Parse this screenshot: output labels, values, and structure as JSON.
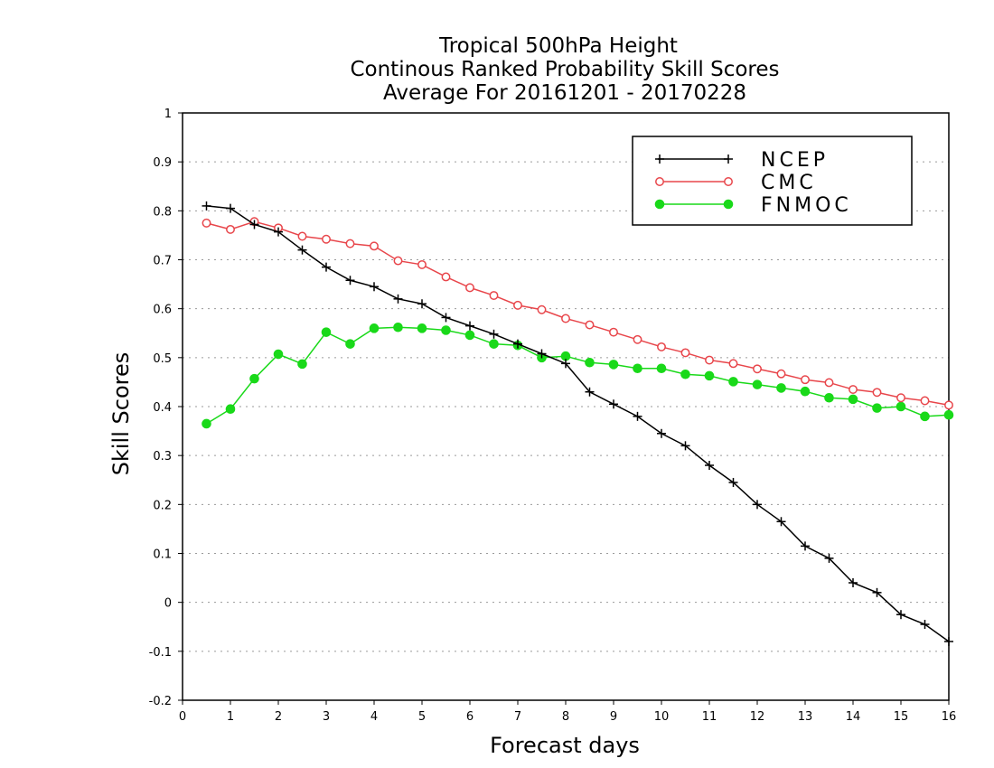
{
  "chart_data": {
    "type": "line",
    "title_lines": [
      "Tropical 500hPa Height",
      "Continous Ranked Probability Skill Scores",
      "Average For 20161201 - 20170228"
    ],
    "xlabel": "Forecast days",
    "ylabel": "Skill Scores",
    "xlim": [
      0,
      16
    ],
    "ylim": [
      -0.2,
      1
    ],
    "x_ticks": [
      0,
      1,
      2,
      3,
      4,
      5,
      6,
      7,
      8,
      9,
      10,
      11,
      12,
      13,
      14,
      15,
      16
    ],
    "x_tick_labels": [
      "0",
      "1",
      "2",
      "3",
      "4",
      "5",
      "6",
      "7",
      "8",
      "9",
      "10",
      "11",
      "12",
      "13",
      "14",
      "15",
      "16"
    ],
    "y_ticks": [
      -0.2,
      -0.1,
      0,
      0.1,
      0.2,
      0.3,
      0.4,
      0.5,
      0.6,
      0.7,
      0.8,
      0.9,
      1
    ],
    "y_tick_labels": [
      "-0.2",
      "-0.1",
      "0",
      "0.1",
      "0.2",
      "0.3",
      "0.4",
      "0.5",
      "0.6",
      "0.7",
      "0.8",
      "0.9",
      "1"
    ],
    "grid": true,
    "legend_position": "top-right",
    "x": [
      0.5,
      1,
      1.5,
      2,
      2.5,
      3,
      3.5,
      4,
      4.5,
      5,
      5.5,
      6,
      6.5,
      7,
      7.5,
      8,
      8.5,
      9,
      9.5,
      10,
      10.5,
      11,
      11.5,
      12,
      12.5,
      13,
      13.5,
      14,
      14.5,
      15,
      15.5,
      16
    ],
    "series": [
      {
        "name": "NCEP",
        "color": "#000000",
        "marker": "plus",
        "values": [
          0.81,
          0.805,
          0.772,
          0.757,
          0.72,
          0.685,
          0.658,
          0.645,
          0.62,
          0.61,
          0.582,
          0.565,
          0.548,
          0.528,
          0.508,
          0.488,
          0.43,
          0.405,
          0.38,
          0.345,
          0.32,
          0.28,
          0.245,
          0.2,
          0.165,
          0.115,
          0.09,
          0.04,
          0.02,
          -0.025,
          -0.045,
          -0.08
        ]
      },
      {
        "name": "CMC",
        "color": "#e8464b",
        "marker": "open-circle",
        "values": [
          0.775,
          0.762,
          0.778,
          0.765,
          0.748,
          0.742,
          0.733,
          0.728,
          0.698,
          0.69,
          0.665,
          0.643,
          0.627,
          0.607,
          0.598,
          0.58,
          0.567,
          0.552,
          0.537,
          0.522,
          0.51,
          0.495,
          0.488,
          0.477,
          0.467,
          0.455,
          0.449,
          0.435,
          0.429,
          0.418,
          0.412,
          0.403
        ]
      },
      {
        "name": "FNMOC",
        "color": "#19d919",
        "marker": "filled-circle",
        "values": [
          0.365,
          0.395,
          0.457,
          0.507,
          0.487,
          0.552,
          0.528,
          0.56,
          0.562,
          0.56,
          0.556,
          0.546,
          0.528,
          0.525,
          0.5,
          0.503,
          0.49,
          0.486,
          0.478,
          0.478,
          0.466,
          0.463,
          0.451,
          0.445,
          0.438,
          0.431,
          0.418,
          0.415,
          0.397,
          0.4,
          0.38,
          0.383
        ]
      }
    ]
  }
}
